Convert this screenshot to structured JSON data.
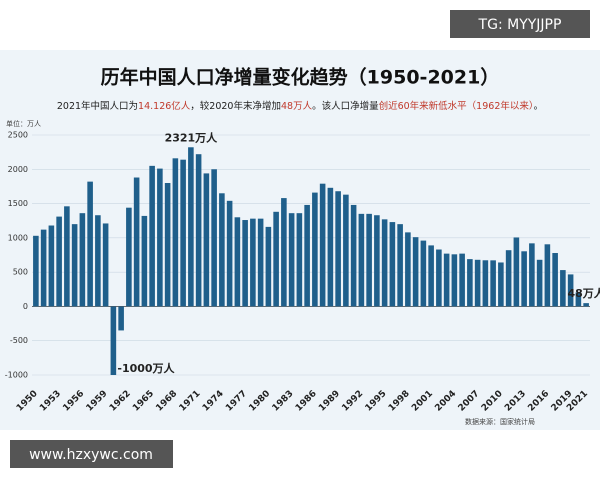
{
  "chart_data": {
    "type": "bar",
    "title": "历年中国人口净增量变化趋势（1950-2021）",
    "subtitle_parts": [
      {
        "text": "2021年中国人口为",
        "color": "#222222"
      },
      {
        "text": "14.126亿人",
        "color": "#c0392b"
      },
      {
        "text": "，较2020年末净增加",
        "color": "#222222"
      },
      {
        "text": "48万人",
        "color": "#c0392b"
      },
      {
        "text": "。该人口净增量",
        "color": "#222222"
      },
      {
        "text": "创近60年来新低水平（1962年以来）",
        "color": "#c0392b"
      },
      {
        "text": "。",
        "color": "#222222"
      }
    ],
    "unit_label": "单位：万人",
    "source": "数据来源：国家统计局",
    "color": "#1f5f8b",
    "categories": [
      "1950",
      null,
      null,
      "1953",
      null,
      null,
      "1956",
      null,
      null,
      "1959",
      null,
      null,
      "1962",
      null,
      null,
      "1965",
      null,
      null,
      "1968",
      null,
      null,
      "1971",
      null,
      null,
      "1974",
      null,
      null,
      "1977",
      null,
      null,
      "1980",
      null,
      null,
      "1983",
      null,
      null,
      "1986",
      null,
      null,
      "1989",
      null,
      null,
      "1992",
      null,
      null,
      "1995",
      null,
      null,
      "1998",
      null,
      null,
      "2001",
      null,
      null,
      "2004",
      null,
      null,
      "2007",
      null,
      null,
      "2010",
      null,
      null,
      "2013",
      null,
      null,
      "2016",
      null,
      null,
      "2019",
      null,
      "2021"
    ],
    "values": [
      1030,
      1120,
      1180,
      1310,
      1460,
      1200,
      1360,
      1820,
      1330,
      1210,
      -1000,
      -350,
      1440,
      1880,
      1320,
      2050,
      2010,
      1800,
      2160,
      2140,
      2321,
      2220,
      1940,
      2000,
      1650,
      1540,
      1300,
      1260,
      1280,
      1280,
      1160,
      1380,
      1580,
      1360,
      1360,
      1480,
      1660,
      1790,
      1730,
      1680,
      1630,
      1480,
      1350,
      1350,
      1330,
      1270,
      1230,
      1200,
      1080,
      1010,
      960,
      890,
      830,
      770,
      760,
      770,
      690,
      680,
      673,
      672,
      641,
      820,
      1006,
      804,
      920,
      680,
      906,
      779,
      530,
      467,
      204,
      48
    ],
    "value_labels": [
      null,
      null,
      null,
      null,
      null,
      null,
      null,
      null,
      null,
      null,
      "-1000万人",
      null,
      null,
      null,
      null,
      null,
      null,
      null,
      null,
      null,
      "2321万人",
      null,
      null,
      null,
      null,
      null,
      null,
      null,
      null,
      null,
      null,
      null,
      null,
      null,
      null,
      null,
      null,
      null,
      null,
      null,
      null,
      null,
      null,
      null,
      null,
      null,
      null,
      null,
      null,
      null,
      null,
      null,
      null,
      null,
      null,
      null,
      null,
      null,
      null,
      null,
      null,
      null,
      null,
      null,
      null,
      null,
      null,
      null,
      null,
      null,
      null,
      "48万人"
    ],
    "ylim": [
      -1000,
      2500
    ],
    "yticks": [
      -1000,
      -500,
      0,
      500,
      1000,
      1500,
      2000,
      2500
    ],
    "grid": true
  },
  "watermarks": {
    "top": "TG: MYYJJPP",
    "bottom": "www.hzxywc.com"
  }
}
